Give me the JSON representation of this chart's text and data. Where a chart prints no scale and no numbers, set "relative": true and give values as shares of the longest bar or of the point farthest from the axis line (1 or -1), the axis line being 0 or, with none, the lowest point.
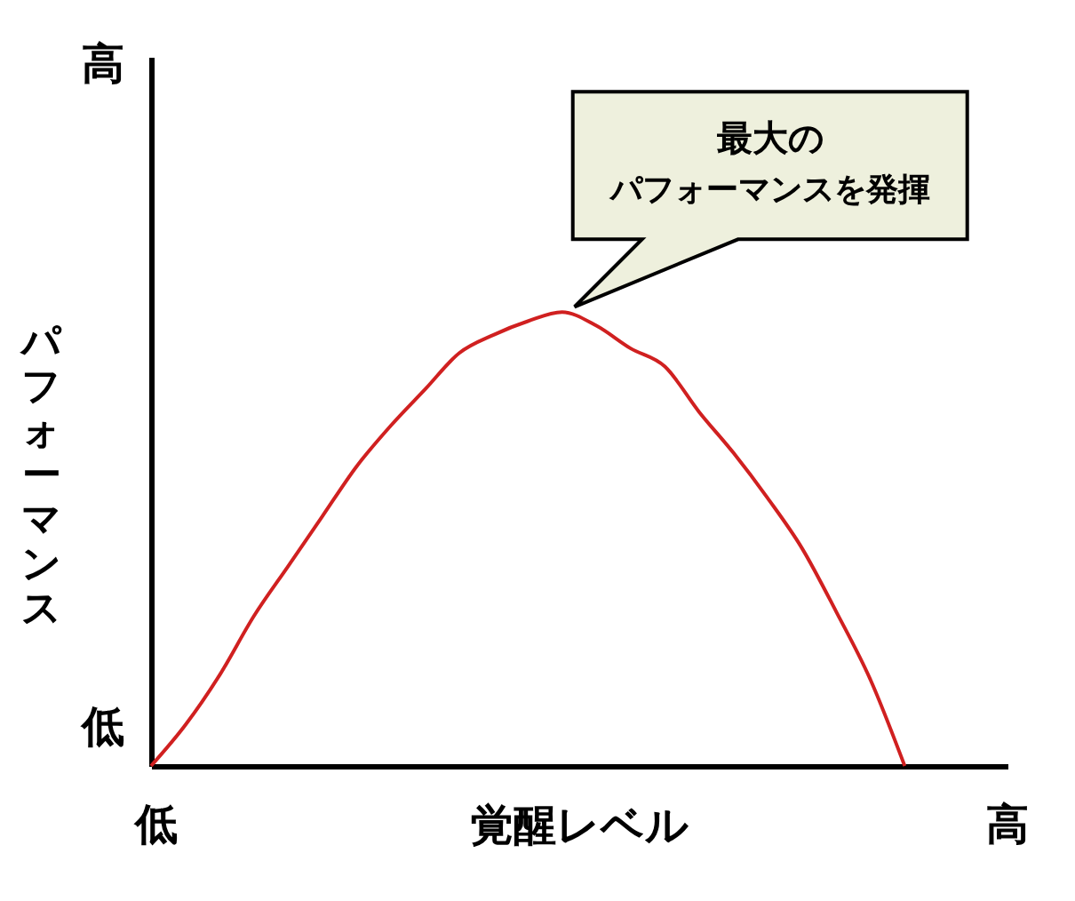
{
  "chart_data": {
    "type": "line",
    "relative": true,
    "xlabel": "覚醒レベル",
    "ylabel": "パフォーマンス",
    "categories": [
      null,
      null,
      null,
      null,
      null,
      null,
      null,
      null,
      null,
      null,
      null,
      null,
      null,
      null,
      null,
      null,
      null,
      null,
      null,
      null,
      null,
      null,
      null,
      null,
      null,
      null
    ],
    "series": [
      {
        "color": "#d02020",
        "values": [
          0,
          0.09,
          0.2,
          0.33,
          0.44,
          0.55,
          0.66,
          0.75,
          0.83,
          0.91,
          0.95,
          0.98,
          1,
          0.97,
          0.92,
          0.88,
          0.78,
          0.69,
          0.59,
          0.48,
          0.34,
          0.19,
          0,
          null,
          null,
          null
        ]
      }
    ],
    "annotations": [
      "高",
      "最大の",
      "パフォーマンスを発揮",
      "低",
      "低",
      "高"
    ],
    "marker": "none",
    "line_style": "solid",
    "grid": false
  }
}
